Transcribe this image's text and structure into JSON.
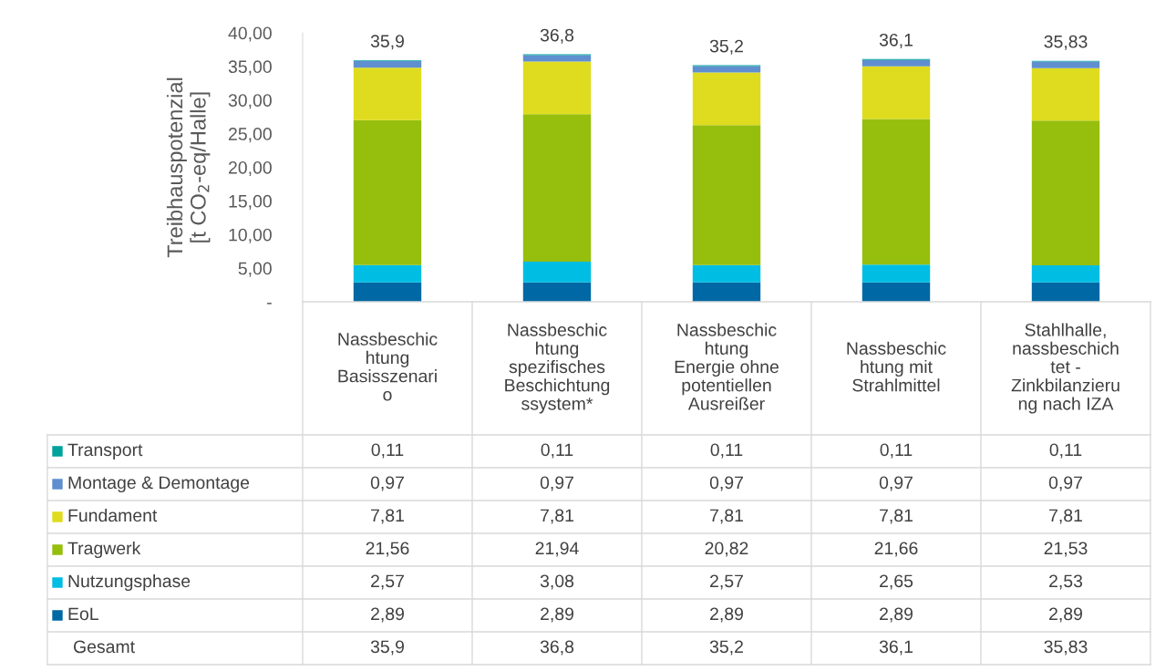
{
  "chart_data": {
    "type": "bar",
    "stacked": true,
    "ylabel": "Treibhauspotenzial\n[t CO$_{2}$-eq/Halle]",
    "categories": [
      "Nassbeschic\nhtung\nBasisszenari\no",
      "Nassbeschic\nhtung\nspezifisches\nBeschichtung\nssystem*",
      "Nassbeschic\nhtung\nEnergie ohne\npotentiellen\nAusreißer",
      "Nassbeschic\nhtung mit\nStrahlmittel",
      "Stahlhalle,\nnassbeschich\ntet -\nZinkbilanzieru\nng nach IZA"
    ],
    "series": [
      {
        "name": "EoL",
        "color": "#0068a4",
        "values": [
          2.89,
          2.89,
          2.89,
          2.89,
          2.89
        ],
        "value_labels": [
          "2,89",
          "2,89",
          "2,89",
          "2,89",
          "2,89"
        ]
      },
      {
        "name": "Nutzungsphase",
        "color": "#00bde3",
        "values": [
          2.57,
          3.08,
          2.57,
          2.65,
          2.53
        ],
        "value_labels": [
          "2,57",
          "3,08",
          "2,57",
          "2,65",
          "2,53"
        ]
      },
      {
        "name": "Tragwerk",
        "color": "#96bf0d",
        "values": [
          21.56,
          21.94,
          20.82,
          21.66,
          21.53
        ],
        "value_labels": [
          "21,56",
          "21,94",
          "20,82",
          "21,66",
          "21,53"
        ]
      },
      {
        "name": "Fundament",
        "color": "#dfdc1f",
        "values": [
          7.81,
          7.81,
          7.81,
          7.81,
          7.81
        ],
        "value_labels": [
          "7,81",
          "7,81",
          "7,81",
          "7,81",
          "7,81"
        ]
      },
      {
        "name": "Montage & Demontage",
        "color": "#5f8fcf",
        "values": [
          0.97,
          0.97,
          0.97,
          0.97,
          0.97
        ],
        "value_labels": [
          "0,97",
          "0,97",
          "0,97",
          "0,97",
          "0,97"
        ]
      },
      {
        "name": "Transport",
        "color": "#00a39c",
        "values": [
          0.11,
          0.11,
          0.11,
          0.11,
          0.11
        ],
        "value_labels": [
          "0,11",
          "0,11",
          "0,11",
          "0,11",
          "0,11"
        ]
      }
    ],
    "totals": [
      "35,9",
      "36,8",
      "35,2",
      "36,1",
      "35,83"
    ],
    "annotations": [
      "Gesamt"
    ],
    "ylim": [
      0,
      40
    ],
    "yticks": [
      {
        "value": 0,
        "label": "-"
      },
      {
        "value": 5,
        "label": "5,00"
      },
      {
        "value": 10,
        "label": "10,00"
      },
      {
        "value": 15,
        "label": "15,00"
      },
      {
        "value": 20,
        "label": "20,00"
      },
      {
        "value": 25,
        "label": "25,00"
      },
      {
        "value": 30,
        "label": "30,00"
      },
      {
        "value": 35,
        "label": "35,00"
      },
      {
        "value": 40,
        "label": "40,00"
      }
    ],
    "grid": false,
    "legend": "bottom left"
  }
}
